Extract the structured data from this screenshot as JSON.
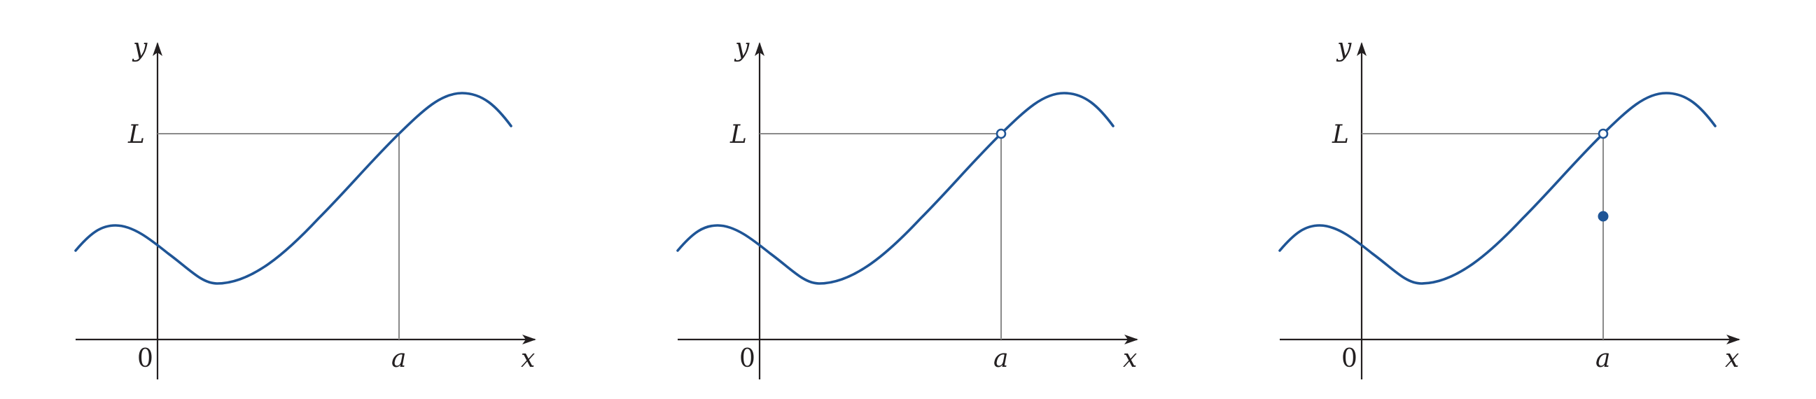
{
  "panels": [
    {
      "id": "panel-1",
      "y_label": "y",
      "x_label": "x",
      "origin_label": "0",
      "limit_label": "L",
      "point_label": "a",
      "point_at_a": "on-curve"
    },
    {
      "id": "panel-2",
      "y_label": "y",
      "x_label": "x",
      "origin_label": "0",
      "limit_label": "L",
      "point_label": "a",
      "point_at_a": "open-circle"
    },
    {
      "id": "panel-3",
      "y_label": "y",
      "x_label": "x",
      "origin_label": "0",
      "limit_label": "L",
      "point_label": "a",
      "point_at_a": "open-circle-with-filled-point-below"
    }
  ],
  "colors": {
    "curve": "#1f5596",
    "axis": "#231f20",
    "guide": "#8a8a8a"
  }
}
